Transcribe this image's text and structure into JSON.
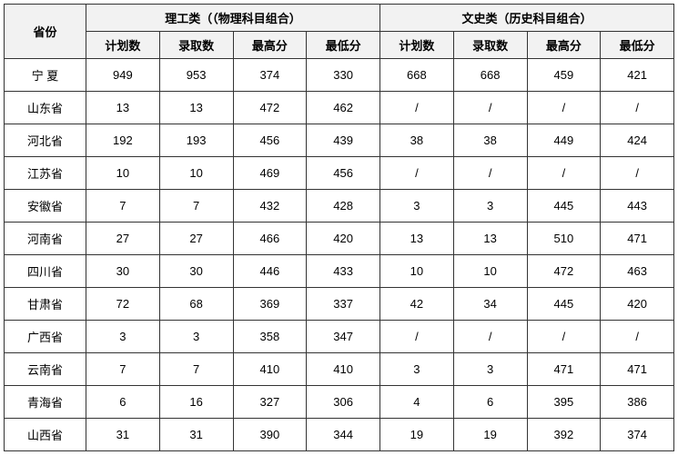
{
  "table": {
    "headers": {
      "province": "省份",
      "science_group": "理工类（（物理科目组合）",
      "arts_group": "文史类（历史科目组合）",
      "plan_count": "计划数",
      "admit_count": "录取数",
      "max_score": "最高分",
      "min_score": "最低分"
    },
    "rows": [
      {
        "province": "宁 夏",
        "s_plan": "949",
        "s_admit": "953",
        "s_max": "374",
        "s_min": "330",
        "a_plan": "668",
        "a_admit": "668",
        "a_max": "459",
        "a_min": "421"
      },
      {
        "province": "山东省",
        "s_plan": "13",
        "s_admit": "13",
        "s_max": "472",
        "s_min": "462",
        "a_plan": "/",
        "a_admit": "/",
        "a_max": "/",
        "a_min": "/"
      },
      {
        "province": "河北省",
        "s_plan": "192",
        "s_admit": "193",
        "s_max": "456",
        "s_min": "439",
        "a_plan": "38",
        "a_admit": "38",
        "a_max": "449",
        "a_min": "424"
      },
      {
        "province": "江苏省",
        "s_plan": "10",
        "s_admit": "10",
        "s_max": "469",
        "s_min": "456",
        "a_plan": "/",
        "a_admit": "/",
        "a_max": "/",
        "a_min": "/"
      },
      {
        "province": "安徽省",
        "s_plan": "7",
        "s_admit": "7",
        "s_max": "432",
        "s_min": "428",
        "a_plan": "3",
        "a_admit": "3",
        "a_max": "445",
        "a_min": "443"
      },
      {
        "province": "河南省",
        "s_plan": "27",
        "s_admit": "27",
        "s_max": "466",
        "s_min": "420",
        "a_plan": "13",
        "a_admit": "13",
        "a_max": "510",
        "a_min": "471"
      },
      {
        "province": "四川省",
        "s_plan": "30",
        "s_admit": "30",
        "s_max": "446",
        "s_min": "433",
        "a_plan": "10",
        "a_admit": "10",
        "a_max": "472",
        "a_min": "463"
      },
      {
        "province": "甘肃省",
        "s_plan": "72",
        "s_admit": "68",
        "s_max": "369",
        "s_min": "337",
        "a_plan": "42",
        "a_admit": "34",
        "a_max": "445",
        "a_min": "420"
      },
      {
        "province": "广西省",
        "s_plan": "3",
        "s_admit": "3",
        "s_max": "358",
        "s_min": "347",
        "a_plan": "/",
        "a_admit": "/",
        "a_max": "/",
        "a_min": "/"
      },
      {
        "province": "云南省",
        "s_plan": "7",
        "s_admit": "7",
        "s_max": "410",
        "s_min": "410",
        "a_plan": "3",
        "a_admit": "3",
        "a_max": "471",
        "a_min": "471"
      },
      {
        "province": "青海省",
        "s_plan": "6",
        "s_admit": "16",
        "s_max": "327",
        "s_min": "306",
        "a_plan": "4",
        "a_admit": "6",
        "a_max": "395",
        "a_min": "386"
      },
      {
        "province": "山西省",
        "s_plan": "31",
        "s_admit": "31",
        "s_max": "390",
        "s_min": "344",
        "a_plan": "19",
        "a_admit": "19",
        "a_max": "392",
        "a_min": "374"
      }
    ]
  }
}
